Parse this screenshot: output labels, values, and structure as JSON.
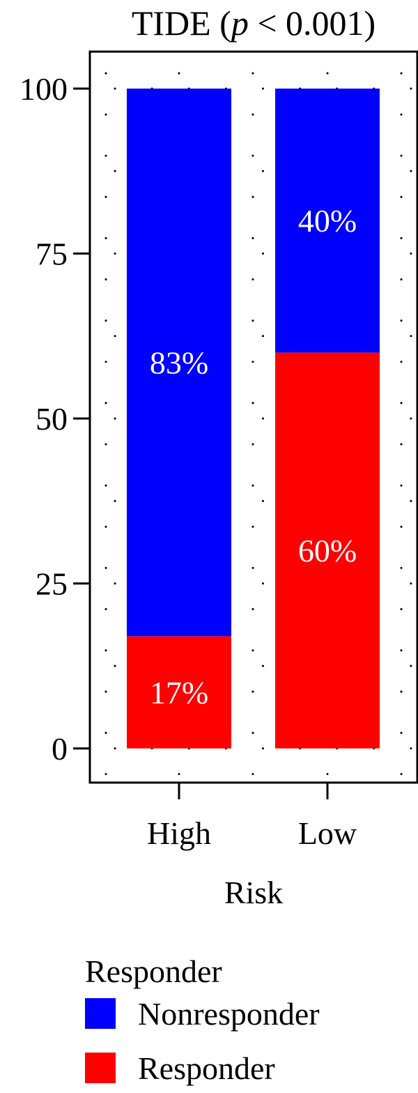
{
  "chart_data": {
    "type": "bar",
    "stacked": true,
    "title": {
      "prefix": "TIDE (",
      "italic": "p",
      "suffix": " < 0.001)"
    },
    "xlabel": "Risk",
    "ylabel": "",
    "categories": [
      "High",
      "Low"
    ],
    "ylim": [
      0,
      100
    ],
    "yticks": [
      0,
      25,
      50,
      75,
      100
    ],
    "ytick_labels": [
      "0",
      "25",
      "50",
      "75",
      "100"
    ],
    "grid": "dotted",
    "series": [
      {
        "name": "Responder",
        "color": "#ff0000",
        "values": [
          17,
          60
        ],
        "labels": [
          "17%",
          "60%"
        ]
      },
      {
        "name": "Nonresponder",
        "color": "#0000ff",
        "values": [
          83,
          40
        ],
        "labels": [
          "83%",
          "40%"
        ]
      }
    ],
    "legend": {
      "title": "Responder",
      "placement": "bottom",
      "entries": [
        {
          "name": "Nonresponder",
          "color": "#0000ff"
        },
        {
          "name": "Responder",
          "color": "#ff0000"
        }
      ]
    }
  }
}
